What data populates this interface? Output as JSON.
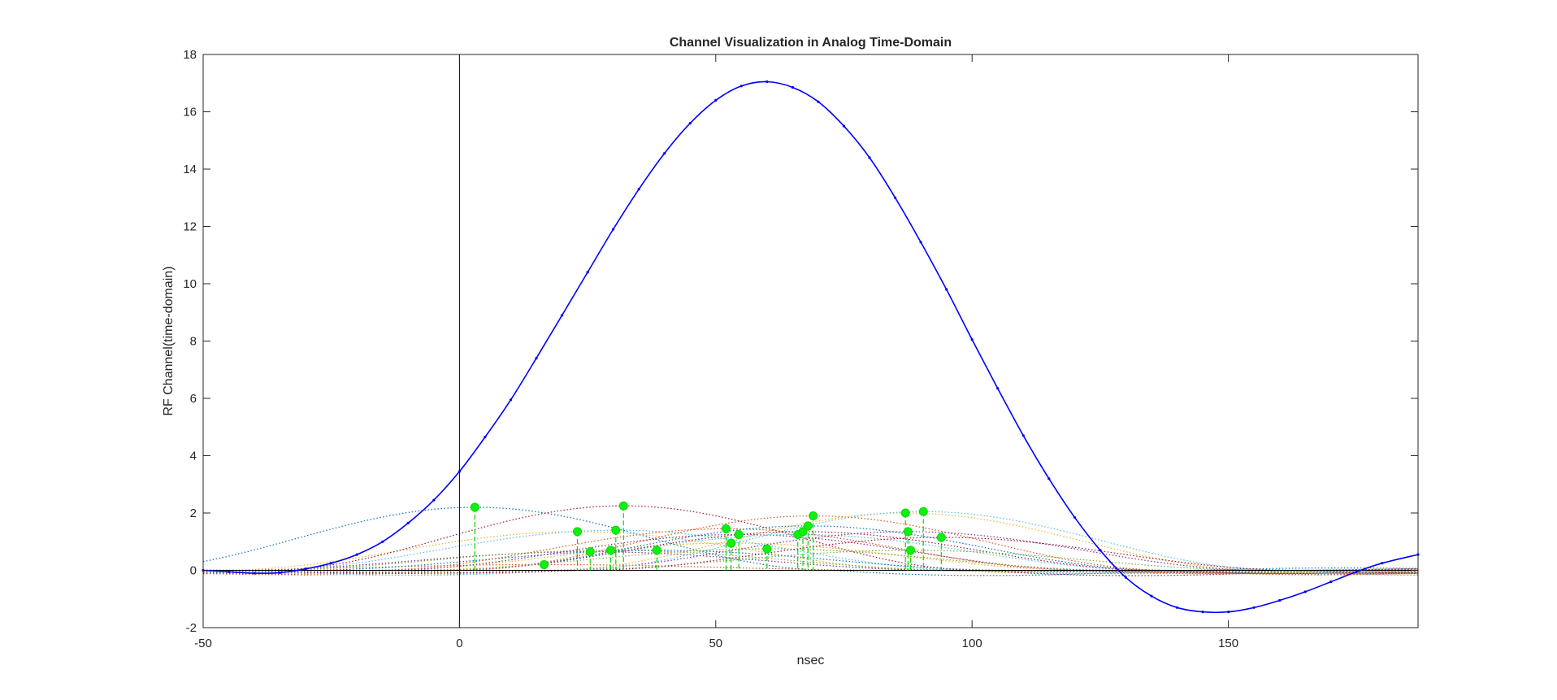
{
  "chart_data": {
    "type": "line",
    "title": "Channel Visualization in Analog Time-Domain",
    "xlabel": "nsec",
    "ylabel": "RF Channel(time-domain)",
    "xlim": [
      -50,
      187
    ],
    "ylim": [
      -2,
      18
    ],
    "xticks": [
      -50,
      0,
      50,
      100,
      150
    ],
    "yticks": [
      -2,
      0,
      2,
      4,
      6,
      8,
      10,
      12,
      14,
      16,
      18
    ],
    "grid": false,
    "reference_lines": {
      "vertical_x": 0,
      "horizontal_y": 0
    },
    "colors": {
      "main_series": "#0000ff",
      "stems": "#00dd00",
      "markers": "#11ee11",
      "component_palette": [
        "#0072BD",
        "#D95319",
        "#EDB120",
        "#7E2F8E",
        "#77AC30",
        "#4DBEEE",
        "#A2142F"
      ]
    },
    "main_series": {
      "style": "solid line with point markers",
      "x": [
        -50,
        -45,
        -40,
        -35,
        -30,
        -25,
        -20,
        -15,
        -10,
        -5,
        0,
        5,
        10,
        15,
        20,
        25,
        30,
        35,
        40,
        45,
        50,
        55,
        60,
        65,
        70,
        75,
        80,
        85,
        90,
        95,
        100,
        105,
        110,
        115,
        120,
        125,
        130,
        135,
        140,
        145,
        150,
        155,
        160,
        165,
        170,
        175,
        180,
        187
      ],
      "y": [
        0.0,
        -0.05,
        -0.1,
        -0.08,
        0.05,
        0.25,
        0.55,
        1.0,
        1.65,
        2.45,
        3.45,
        4.65,
        5.95,
        7.4,
        8.9,
        10.4,
        11.9,
        13.3,
        14.55,
        15.6,
        16.4,
        16.9,
        17.05,
        16.85,
        16.35,
        15.5,
        14.4,
        13.0,
        11.45,
        9.8,
        8.05,
        6.35,
        4.7,
        3.2,
        1.85,
        0.7,
        -0.25,
        -0.9,
        -1.3,
        -1.45,
        -1.45,
        -1.3,
        -1.05,
        -0.75,
        -0.4,
        -0.05,
        0.25,
        0.55
      ]
    },
    "components": [
      {
        "delay": 3,
        "amplitude": 2.2
      },
      {
        "delay": 16.5,
        "amplitude": 0.2
      },
      {
        "delay": 23,
        "amplitude": 1.35
      },
      {
        "delay": 25.5,
        "amplitude": 0.65
      },
      {
        "delay": 29.5,
        "amplitude": 0.7
      },
      {
        "delay": 30.5,
        "amplitude": 1.4
      },
      {
        "delay": 32,
        "amplitude": 2.25
      },
      {
        "delay": 38.5,
        "amplitude": 0.7
      },
      {
        "delay": 52,
        "amplitude": 1.45
      },
      {
        "delay": 53,
        "amplitude": 0.95
      },
      {
        "delay": 54.5,
        "amplitude": 1.25
      },
      {
        "delay": 60,
        "amplitude": 0.75
      },
      {
        "delay": 66,
        "amplitude": 1.25
      },
      {
        "delay": 67,
        "amplitude": 1.35
      },
      {
        "delay": 68,
        "amplitude": 1.55
      },
      {
        "delay": 69,
        "amplitude": 1.9
      },
      {
        "delay": 87,
        "amplitude": 2.0
      },
      {
        "delay": 87.5,
        "amplitude": 1.35
      },
      {
        "delay": 88,
        "amplitude": 0.7
      },
      {
        "delay": 90.5,
        "amplitude": 2.05
      },
      {
        "delay": 94,
        "amplitude": 1.15
      }
    ]
  }
}
